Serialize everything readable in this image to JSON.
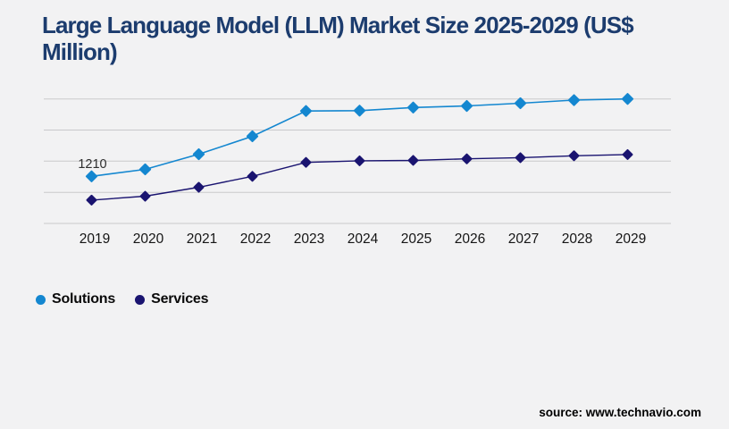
{
  "title": "Large Language Model (LLM) Market Size 2025-2029 (US$ Million)",
  "source": "source: www.technavio.com",
  "colors": {
    "background": "#f2f2f3",
    "title": "#1c3c6e",
    "gridline": "#c9c9cb",
    "solutions": "#1487d0",
    "services": "#1a1470",
    "axis_label": "#151515",
    "data_label": "#2e2e2e"
  },
  "chart_data": {
    "type": "line",
    "title": "Large Language Model (LLM) Market Size 2025-2029 (US$ Million)",
    "xlabel": "",
    "ylabel": "",
    "categories": [
      "2019",
      "2020",
      "2021",
      "2022",
      "2023",
      "2024",
      "2025",
      "2026",
      "2027",
      "2028",
      "2029"
    ],
    "series": [
      {
        "name": "Solutions",
        "color": "#1487d0",
        "values": [
          1210,
          1390,
          1780,
          2240,
          2890,
          2900,
          2980,
          3020,
          3090,
          3170,
          3200
        ]
      },
      {
        "name": "Services",
        "color": "#1a1470",
        "values": [
          600,
          700,
          930,
          1210,
          1570,
          1610,
          1620,
          1660,
          1690,
          1740,
          1770
        ]
      }
    ],
    "annotations": [
      {
        "text": "1210",
        "series": "Solutions",
        "category": "2019"
      }
    ],
    "ylim": [
      0,
      3200
    ],
    "gridline_step": 800,
    "grid": "horizontal-only",
    "y_axis_labels_visible": false,
    "marker": "diamond",
    "legend_position": "bottom-left"
  }
}
